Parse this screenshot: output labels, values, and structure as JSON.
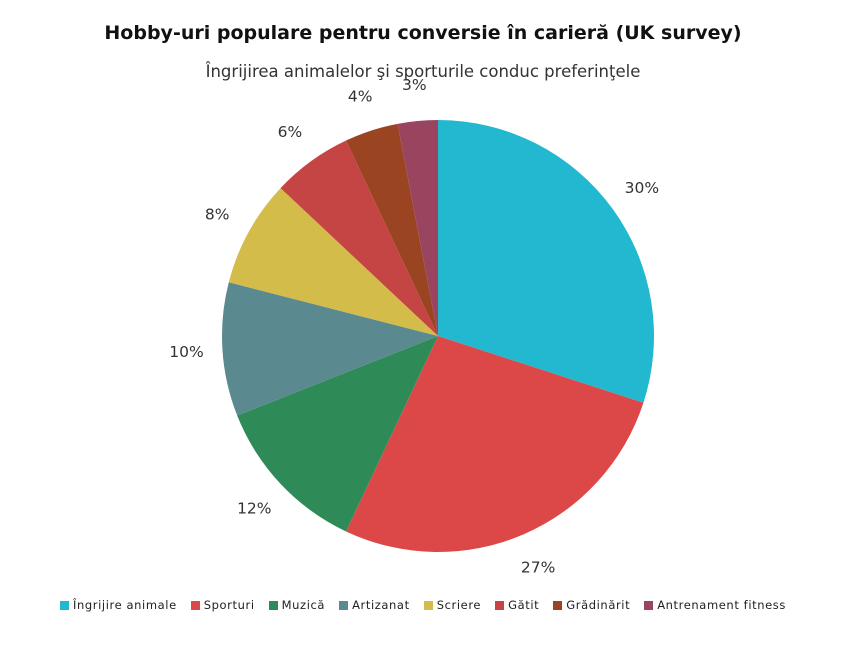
{
  "chart_data": {
    "type": "pie",
    "title": "Hobby-uri populare pentru conversie în carieră (UK survey)",
    "subtitle": "Îngrijirea animalelor şi sporturile conduc preferinţele",
    "categories": [
      "Îngrijire animale",
      "Sporturi",
      "Muzică",
      "Artizanat",
      "Scriere",
      "Gătit",
      "Grădinărit",
      "Antrenament fitness"
    ],
    "values": [
      30,
      27,
      12,
      10,
      8,
      6,
      4,
      3
    ],
    "labels": [
      "30%",
      "27%",
      "12%",
      "10%",
      "8%",
      "6%",
      "4%",
      "3%"
    ],
    "colors": [
      "#22b8cf",
      "#dc4848",
      "#2e8b57",
      "#5a8a8f",
      "#d4bc4a",
      "#c54545",
      "#9a4422",
      "#9a4560"
    ],
    "legend_position": "bottom"
  }
}
